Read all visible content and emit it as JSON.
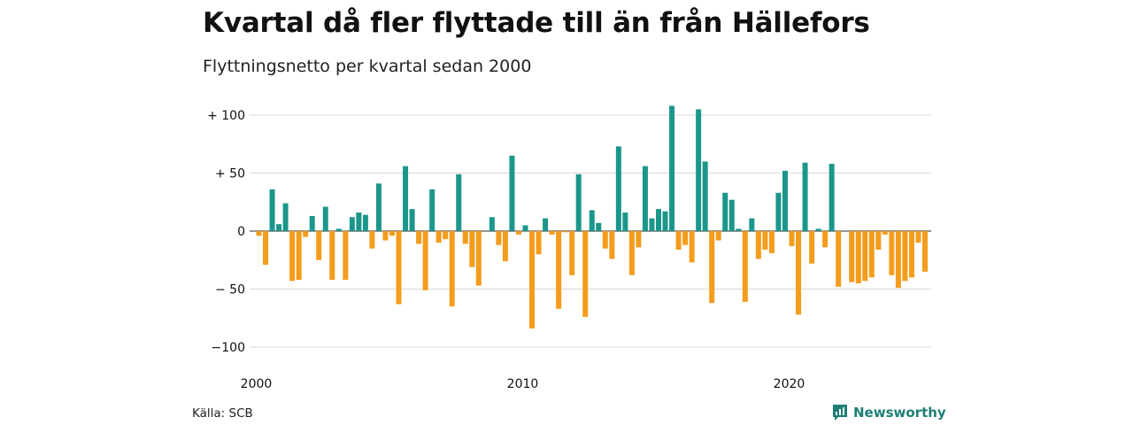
{
  "title": "Kvartal då fler flyttade till än från Hällefors",
  "subtitle": "Flyttningsnetto per kvartal sedan 2000",
  "source": "Källa: SCB",
  "brand": "Newsworthy",
  "brand_icon": "newsworthy-logo-icon",
  "colors": {
    "positive": "#1b968a",
    "negative": "#f49c1c",
    "grid": "#d9d9d9",
    "brand": "#1d7f77"
  },
  "chart_data": {
    "type": "bar",
    "title": "Kvartal då fler flyttade till än från Hällefors",
    "subtitle": "Flyttningsnetto per kvartal sedan 2000",
    "xlabel": "",
    "ylabel": "",
    "ylim": [
      -105,
      110
    ],
    "grid": true,
    "y_ticks": [
      100,
      50,
      0,
      -50,
      -100
    ],
    "y_tick_labels": [
      "+ 100",
      "+  50",
      "0",
      "− 50",
      "−100"
    ],
    "x_tick_labels": [
      "2000",
      "2010",
      "2020"
    ],
    "x_tick_quarter_index": [
      0,
      40,
      80
    ],
    "start": "2000 Q1",
    "values": [
      -4,
      -29,
      36,
      6,
      24,
      -43,
      -42,
      -5,
      13,
      -25,
      21,
      -42,
      2,
      -42,
      12,
      16,
      14,
      -15,
      41,
      -8,
      -4,
      -63,
      56,
      19,
      -11,
      -51,
      36,
      -10,
      -7,
      -65,
      49,
      -11,
      -31,
      -47,
      0,
      12,
      -12,
      -26,
      65,
      -3,
      5,
      -84,
      -20,
      11,
      -3,
      -67,
      -1,
      -38,
      49,
      -74,
      18,
      7,
      -15,
      -24,
      73,
      16,
      -38,
      -14,
      56,
      11,
      19,
      17,
      108,
      -16,
      -12,
      -27,
      105,
      60,
      -62,
      -8,
      33,
      27,
      2,
      -61,
      11,
      -24,
      -16,
      -19,
      33,
      52,
      -13,
      -72,
      59,
      -28,
      2,
      -14,
      58,
      -48,
      0,
      -44,
      -45,
      -43,
      -40,
      -16,
      -3,
      -38,
      -49,
      -43,
      -40,
      -10,
      -35
    ]
  }
}
